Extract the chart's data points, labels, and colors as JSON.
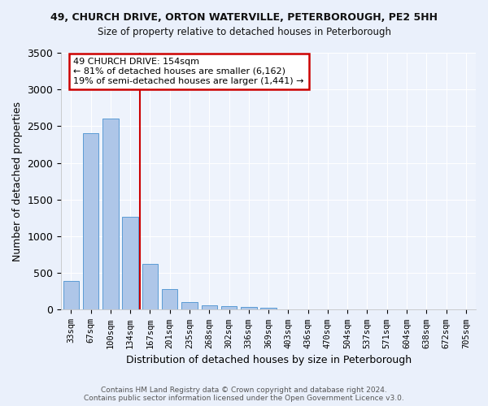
{
  "title1": "49, CHURCH DRIVE, ORTON WATERVILLE, PETERBOROUGH, PE2 5HH",
  "title2": "Size of property relative to detached houses in Peterborough",
  "xlabel": "Distribution of detached houses by size in Peterborough",
  "ylabel": "Number of detached properties",
  "categories": [
    "33sqm",
    "67sqm",
    "100sqm",
    "134sqm",
    "167sqm",
    "201sqm",
    "235sqm",
    "268sqm",
    "302sqm",
    "336sqm",
    "369sqm",
    "403sqm",
    "436sqm",
    "470sqm",
    "504sqm",
    "537sqm",
    "571sqm",
    "604sqm",
    "638sqm",
    "672sqm",
    "705sqm"
  ],
  "values": [
    390,
    2400,
    2600,
    1270,
    620,
    280,
    100,
    60,
    50,
    40,
    30,
    0,
    0,
    0,
    0,
    0,
    0,
    0,
    0,
    0,
    0
  ],
  "bar_color": "#aec6e8",
  "bar_edge_color": "#5b9bd5",
  "vline_color": "#cc0000",
  "annotation_title": "49 CHURCH DRIVE: 154sqm",
  "annotation_line1": "← 81% of detached houses are smaller (6,162)",
  "annotation_line2": "19% of semi-detached houses are larger (1,441) →",
  "annotation_box_color": "#cc0000",
  "ylim": [
    0,
    3500
  ],
  "yticks": [
    0,
    500,
    1000,
    1500,
    2000,
    2500,
    3000,
    3500
  ],
  "footer1": "Contains HM Land Registry data © Crown copyright and database right 2024.",
  "footer2": "Contains public sector information licensed under the Open Government Licence v3.0.",
  "bg_color": "#eaf0fb",
  "plot_bg_color": "#eef3fc"
}
